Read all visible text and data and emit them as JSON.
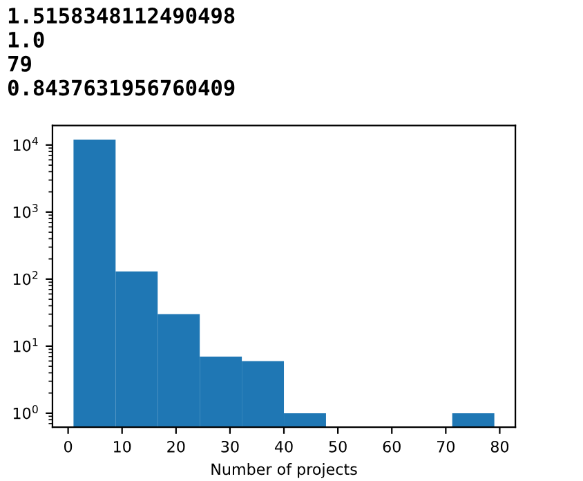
{
  "chart_data": {
    "type": "histogram",
    "xlabel": "Number of projects",
    "bins": [
      1,
      8.8,
      16.6,
      24.4,
      32.2,
      40,
      47.8,
      55.6,
      63.4,
      71.2,
      79
    ],
    "values": [
      12000,
      130,
      30,
      7,
      6,
      1,
      null,
      null,
      null,
      1
    ],
    "color": "#1f77b4",
    "log": "y",
    "xlim": [
      -2.9,
      82.9
    ],
    "xticks": [
      0,
      10,
      20,
      30,
      40,
      50,
      60,
      70,
      80
    ],
    "ylim": [
      0.62,
      19500
    ],
    "yticks": [
      {
        "value": 1,
        "label": "10$^{0}$"
      },
      {
        "value": 10,
        "label": "10$^{1}$"
      },
      {
        "value": 100,
        "label": "10$^{2}$"
      },
      {
        "value": 1000,
        "label": "10$^{3}$"
      },
      {
        "value": 10000,
        "label": "10$^{4}$"
      }
    ],
    "grid": false,
    "annotations": [
      "1.5158348112490498",
      "1.0",
      "79",
      "0.8437631956760409"
    ]
  }
}
